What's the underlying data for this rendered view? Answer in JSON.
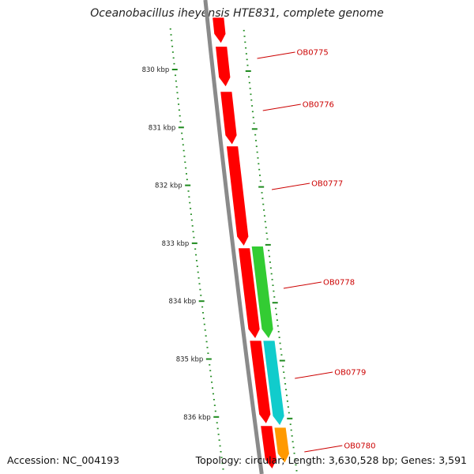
{
  "title": "Oceanobacillus iheyensis HTE831, complete genome",
  "footer": {
    "accession": "Accession: NC_004193",
    "summary": "Topology: circular; Length: 3,630,528 bp; Genes: 3,591"
  },
  "colors": {
    "backbone": "#8a8a8a",
    "forward_gene": "#ff0000",
    "reverse_gene_1": "#33cc33",
    "reverse_gene_2": "#11cccc",
    "reverse_gene_3": "#ff9900",
    "tick": "#1e8a1e",
    "gene_label": "#cc0000"
  },
  "ticks": [
    {
      "label": "830 kbp",
      "kbp": 830
    },
    {
      "label": "831 kbp",
      "kbp": 831
    },
    {
      "label": "832 kbp",
      "kbp": 832
    },
    {
      "label": "833 kbp",
      "kbp": 833
    },
    {
      "label": "834 kbp",
      "kbp": 834
    },
    {
      "label": "835 kbp",
      "kbp": 835
    },
    {
      "label": "836 kbp",
      "kbp": 836
    }
  ],
  "genes": [
    {
      "name": "OB0775",
      "strand": "forward",
      "start_kbp": 829.6,
      "end_kbp": 830.3,
      "color": "#ff0000"
    },
    {
      "name": "OB0776",
      "strand": "forward",
      "start_kbp": 830.38,
      "end_kbp": 831.3,
      "color": "#ff0000"
    },
    {
      "name": "OB0777",
      "strand": "forward",
      "start_kbp": 831.32,
      "end_kbp": 833.05,
      "color": "#ff0000"
    },
    {
      "name": "OB0778",
      "strand": "reverse",
      "start_kbp": 833.05,
      "end_kbp": 834.65,
      "color": "#33cc33"
    },
    {
      "name": "OB0779",
      "strand": "reverse",
      "start_kbp": 834.68,
      "end_kbp": 836.15,
      "color": "#11cccc"
    },
    {
      "name": "OB0780",
      "strand": "reverse",
      "start_kbp": 836.18,
      "end_kbp": 836.8,
      "color": "#ff9900"
    }
  ],
  "extra_forward": [
    {
      "start_kbp": 829.1,
      "end_kbp": 829.55
    },
    {
      "start_kbp": 833.08,
      "end_kbp": 834.65
    },
    {
      "start_kbp": 834.68,
      "end_kbp": 836.12
    },
    {
      "start_kbp": 836.15,
      "end_kbp": 836.9
    }
  ]
}
